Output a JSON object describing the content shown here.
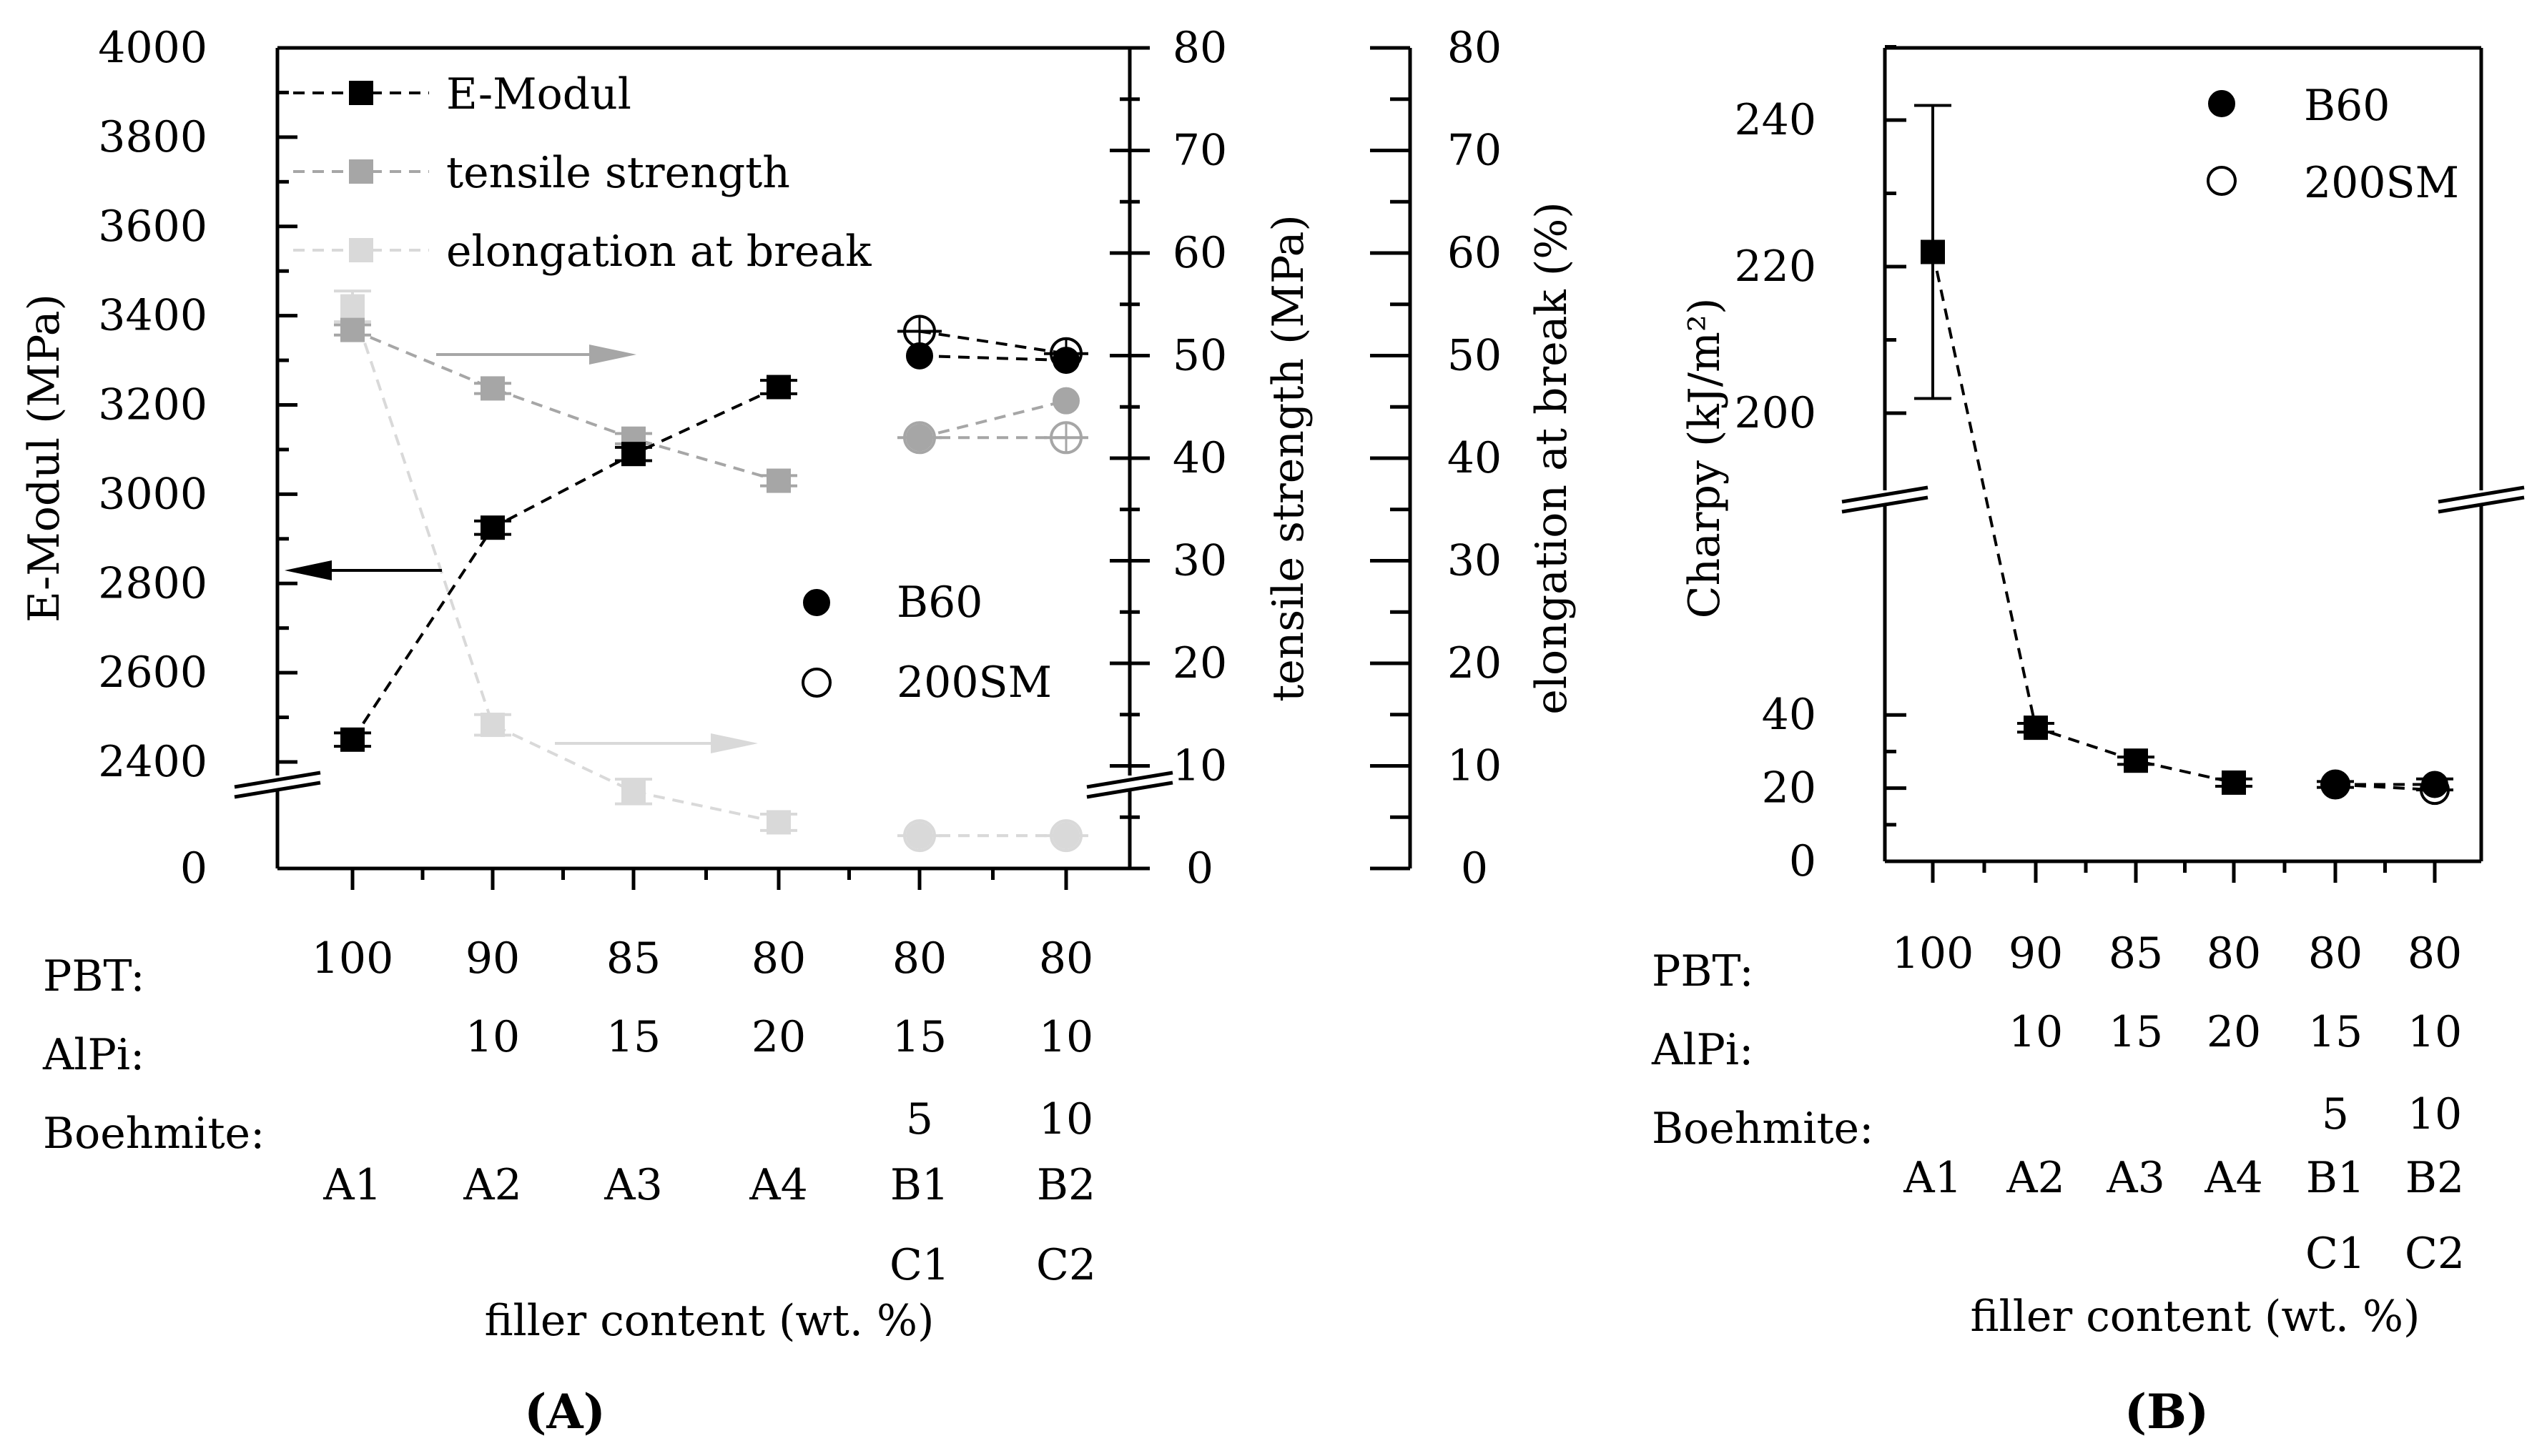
{
  "chart_data": [
    {
      "type": "line",
      "panel": "A",
      "panel_label": "(A)",
      "x_categories": [
        "A1",
        "A2",
        "A3",
        "A4",
        "B1/C1",
        "B2/C2"
      ],
      "left_axis": {
        "title": "E-Modul (MPa)",
        "range": [
          2400,
          4000
        ],
        "broken": true,
        "tick_labels": [
          "0",
          "2400",
          "2600",
          "2800",
          "3000",
          "3200",
          "3400",
          "3600",
          "3800",
          "4000"
        ]
      },
      "right_axis_1": {
        "title": "tensile strength (MPa)",
        "range": [
          0,
          80
        ],
        "broken": true,
        "tick_labels": [
          "0",
          "10",
          "20",
          "30",
          "40",
          "50",
          "60",
          "70",
          "80"
        ]
      },
      "right_axis_2": {
        "title": "elongation at break (%)",
        "range": [
          0,
          80
        ],
        "tick_labels": [
          "0",
          "10",
          "20",
          "30",
          "40",
          "50",
          "60",
          "70",
          "80"
        ]
      },
      "legend": {
        "series": [
          "E-Modul",
          "tensile strength",
          "elongation at break"
        ],
        "markers": [
          "B60",
          "200SM"
        ]
      },
      "series": [
        {
          "name": "E-Modul",
          "axis": "left",
          "color": "#000000",
          "main": [
            2450,
            2925,
            3090,
            3240
          ],
          "b60": [
            3310,
            3300
          ],
          "sm200": [
            3365,
            3315
          ],
          "error": [
            15,
            15,
            15,
            15
          ]
        },
        {
          "name": "tensile strength",
          "axis": "right1",
          "color": "#a6a6a6",
          "main": [
            52.5,
            46.8,
            41.9,
            37.8
          ],
          "b60": [
            42.0,
            45.6
          ],
          "sm200": [
            42.0,
            42.0
          ],
          "error": [
            0.5,
            0.5,
            0.5,
            0.5
          ]
        },
        {
          "name": "elongation at break",
          "axis": "right2",
          "color": "#d9d9d9",
          "main": [
            54.8,
            14.0,
            7.5,
            4.5
          ],
          "b60": [
            3.2,
            3.2
          ],
          "sm200": [
            3.2,
            3.2
          ],
          "error": [
            1.5,
            1.0,
            1.2,
            0.8
          ]
        }
      ],
      "composition_table": {
        "rows": [
          {
            "label": "PBT:",
            "values": [
              "100",
              "90",
              "85",
              "80",
              "80",
              "80"
            ]
          },
          {
            "label": "AlPi:",
            "values": [
              "",
              "10",
              "15",
              "20",
              "15",
              "10"
            ]
          },
          {
            "label": "Boehmite:",
            "values": [
              "",
              "",
              "",
              "",
              "5",
              "10"
            ]
          }
        ],
        "ids": [
          "A1",
          "A2",
          "A3",
          "A4",
          "B1",
          "B2"
        ],
        "ids2": [
          "",
          "",
          "",
          "",
          "C1",
          "C2"
        ]
      },
      "xlabel": "filler content (wt. %)"
    },
    {
      "type": "line",
      "panel": "B",
      "panel_label": "(B)",
      "x_categories": [
        "A1",
        "A2",
        "A3",
        "A4",
        "B1/C1",
        "B2/C2"
      ],
      "y_axis": {
        "title": "Charpy (kJ/m²)",
        "range": [
          0,
          250
        ],
        "broken": true,
        "lower_tick_labels": [
          "0",
          "20",
          "40"
        ],
        "upper_tick_labels": [
          "200",
          "220",
          "240"
        ]
      },
      "legend": {
        "markers": [
          "B60",
          "200SM"
        ]
      },
      "series": [
        {
          "name": "Charpy",
          "main": [
            222,
            36.5,
            27.5,
            21.5
          ],
          "b60": [
            21,
            21
          ],
          "sm200": [
            21,
            19.5
          ],
          "error": [
            20,
            1.2,
            1.0,
            1.0
          ],
          "error_b60": [
            0.8,
            1.5
          ]
        }
      ],
      "composition_table": {
        "rows": [
          {
            "label": "PBT:",
            "values": [
              "100",
              "90",
              "85",
              "80",
              "80",
              "80"
            ]
          },
          {
            "label": "AlPi:",
            "values": [
              "",
              "10",
              "15",
              "20",
              "15",
              "10"
            ]
          },
          {
            "label": "Boehmite:",
            "values": [
              "",
              "",
              "",
              "",
              "5",
              "10"
            ]
          }
        ],
        "ids": [
          "A1",
          "A2",
          "A3",
          "A4",
          "B1",
          "B2"
        ],
        "ids2": [
          "",
          "",
          "",
          "",
          "C1",
          "C2"
        ]
      },
      "xlabel": "filler content (wt. %)"
    }
  ]
}
